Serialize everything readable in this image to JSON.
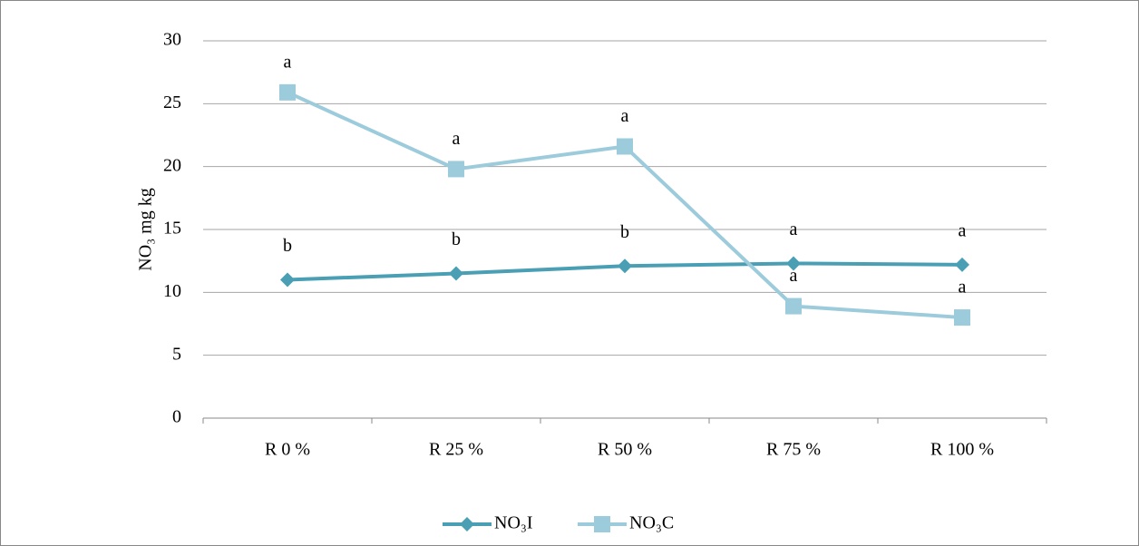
{
  "chart_data": {
    "type": "line",
    "y_label": "NO₃ mg kg",
    "categories": [
      "R 0 %",
      "R 25 %",
      "R 50 %",
      "R 75 %",
      "R 100 %"
    ],
    "series": [
      {
        "name": "NO₃I",
        "color": "#4a9fb4",
        "marker": "diamond",
        "values": [
          11,
          11.5,
          12.1,
          12.3,
          12.2
        ],
        "annotations": [
          "b",
          "b",
          "b",
          "a",
          "a"
        ]
      },
      {
        "name": "NO₃C",
        "color": "#9ccbdc",
        "marker": "square",
        "values": [
          25.9,
          19.8,
          21.6,
          8.9,
          8.0
        ],
        "annotations": [
          "a",
          "a",
          "a",
          "a",
          "a"
        ]
      }
    ],
    "ylim": [
      0,
      30
    ],
    "yticks": [
      0,
      5,
      10,
      15,
      20,
      25,
      30
    ],
    "grid": true,
    "legend": "bottom"
  }
}
